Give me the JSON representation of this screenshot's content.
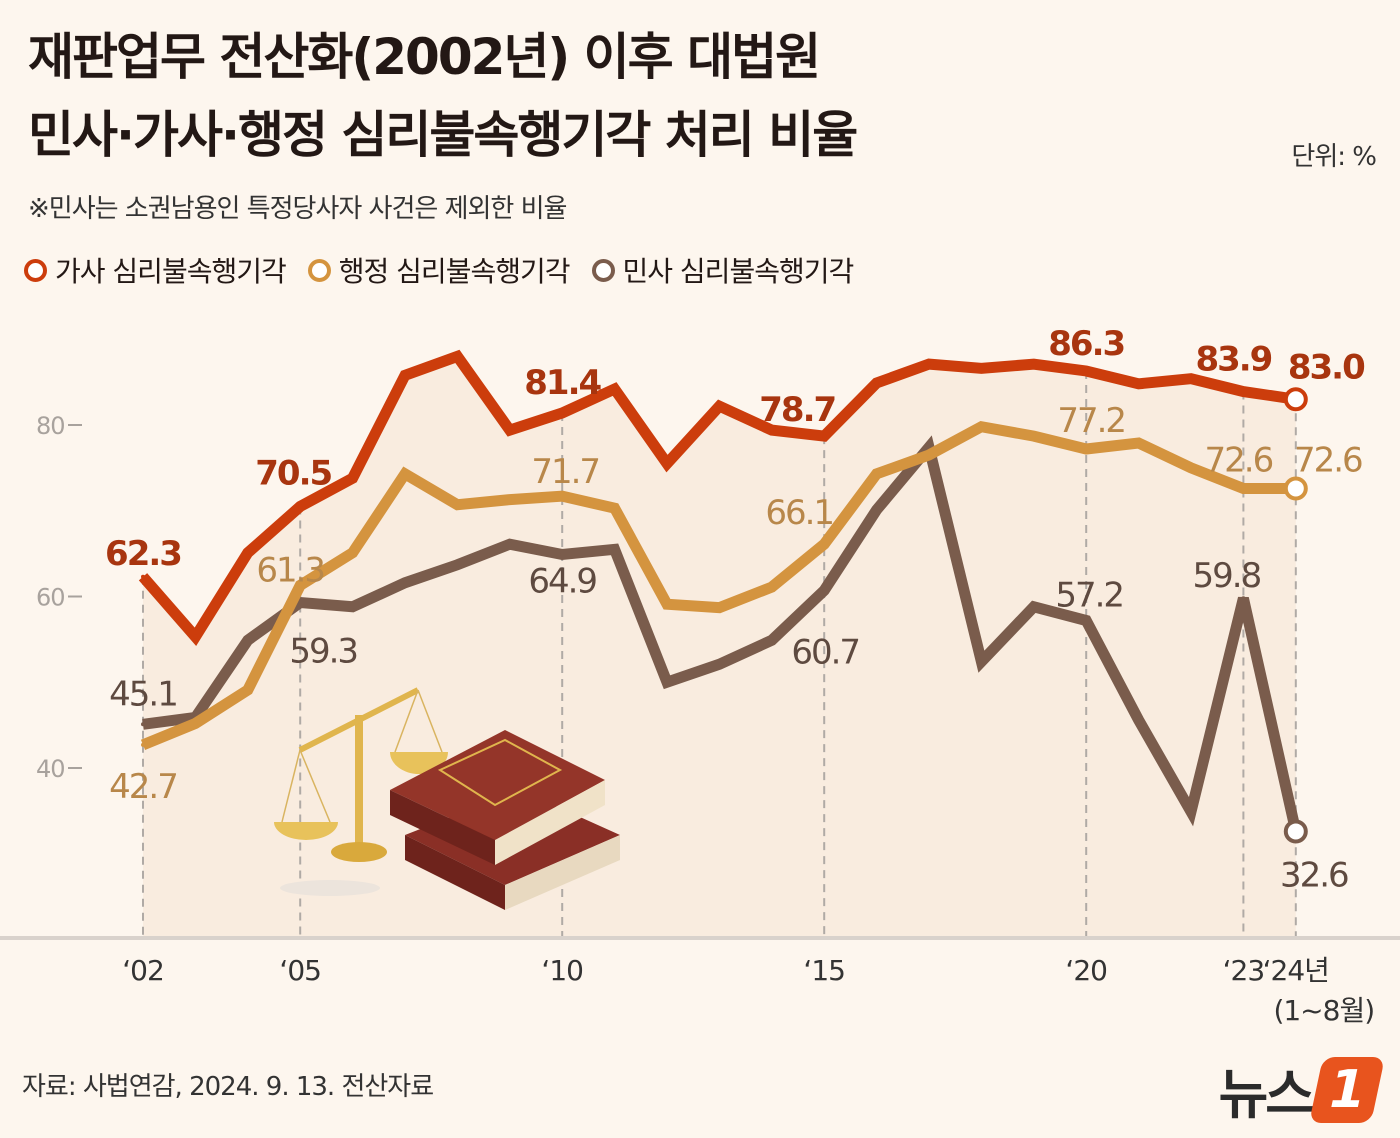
{
  "title_line1": "재판업무 전산화(2002년) 이후 대법원",
  "title_line2": "민사·가사·행정 심리불속행기각 처리 비율",
  "unit": "단위: %",
  "note": "※민사는 소권남용인 특정당사자 사건은 제외한 비율",
  "source": "자료: 사법연감, 2024. 9. 13. 전산자료",
  "logo": {
    "text": "뉴스",
    "mark": "1",
    "color": "#e8541e"
  },
  "chart_data": {
    "type": "line",
    "title": "재판업무 전산화(2002년) 이후 대법원 민사·가사·행정 심리불속행기각 처리 비율",
    "unit": "%",
    "x": [
      2002,
      2003,
      2004,
      2005,
      2006,
      2007,
      2008,
      2009,
      2010,
      2011,
      2012,
      2013,
      2014,
      2015,
      2016,
      2017,
      2018,
      2019,
      2020,
      2021,
      2022,
      2023,
      2024
    ],
    "x_tick_labels": [
      {
        "year": 2002,
        "label": "‘02"
      },
      {
        "year": 2005,
        "label": "‘05"
      },
      {
        "year": 2010,
        "label": "‘10"
      },
      {
        "year": 2015,
        "label": "‘15"
      },
      {
        "year": 2020,
        "label": "‘20"
      },
      {
        "year": 2023,
        "label": "‘23"
      },
      {
        "year": 2024,
        "label": "‘24년",
        "sublabel": "(1~8월)"
      }
    ],
    "y_ticks": [
      40,
      60,
      80
    ],
    "ylim": [
      20,
      95
    ],
    "legend_position": "top-left",
    "series": [
      {
        "name": "가사 심리불속행기각",
        "color": "#cc3d0c",
        "values": [
          62.3,
          55.3,
          65.1,
          70.5,
          73.8,
          85.8,
          88.0,
          79.4,
          81.4,
          84.2,
          75.5,
          82.2,
          79.4,
          78.7,
          84.9,
          87.1,
          86.6,
          87.1,
          86.3,
          84.8,
          85.4,
          83.9,
          83.0
        ],
        "labeled": {
          "2002": "62.3",
          "2005": "70.5",
          "2010": "81.4",
          "2015": "78.7",
          "2020": "86.3",
          "2023": "83.9",
          "2024": "83.0"
        },
        "label_color": "#a8350f"
      },
      {
        "name": "행정 심리불속행기각",
        "color": "#d4943f",
        "values": [
          42.7,
          45.2,
          49.1,
          61.3,
          65.1,
          74.3,
          70.7,
          71.3,
          71.7,
          70.3,
          59.1,
          58.7,
          61.1,
          66.1,
          74.3,
          76.5,
          79.8,
          78.7,
          77.2,
          77.9,
          75.0,
          72.6,
          72.6
        ],
        "labeled": {
          "2002": "42.7",
          "2005": "61.3",
          "2010": "71.7",
          "2015": "66.1",
          "2020": "77.2",
          "2023": "72.6",
          "2024": "72.6"
        },
        "label_color": "#b8874a"
      },
      {
        "name": "민사 심리불속행기각",
        "color": "#7a5c4c",
        "values": [
          45.1,
          45.9,
          54.9,
          59.3,
          58.8,
          61.6,
          63.7,
          66.1,
          64.9,
          65.5,
          50.0,
          52.1,
          54.9,
          60.7,
          70.1,
          77.4,
          52.4,
          58.8,
          57.2,
          45.6,
          34.9,
          59.8,
          32.6
        ],
        "labeled": {
          "2002": "45.1",
          "2005": "59.3",
          "2010": "64.9",
          "2015": "60.7",
          "2020": "57.2",
          "2023": "59.8",
          "2024": "32.6"
        },
        "label_color": "#5e4a40"
      }
    ]
  }
}
